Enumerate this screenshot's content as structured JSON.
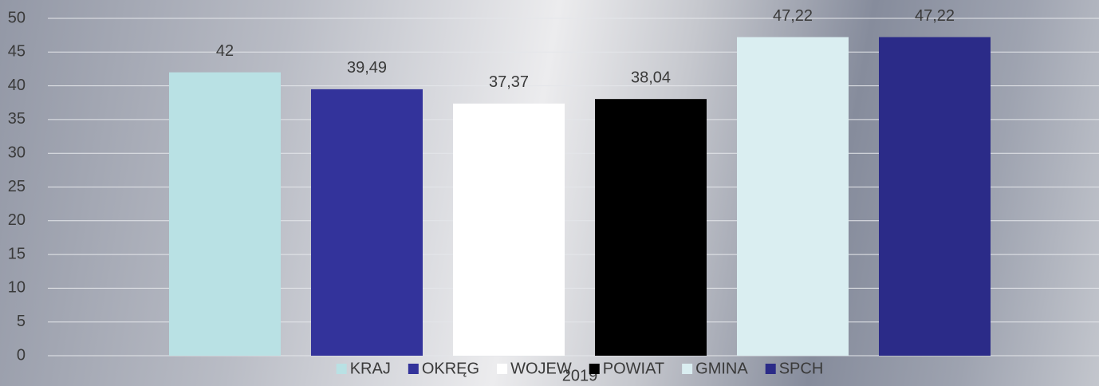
{
  "chart_data": {
    "type": "bar",
    "categories": [
      "2019"
    ],
    "series": [
      {
        "name": "KRAJ",
        "color": "#b9e1e4",
        "values": [
          42
        ],
        "value_labels": [
          "42"
        ]
      },
      {
        "name": "OKRĘG",
        "color": "#33339b",
        "values": [
          39.49
        ],
        "value_labels": [
          "39,49"
        ]
      },
      {
        "name": "WOJEW",
        "color": "#ffffff",
        "values": [
          37.37
        ],
        "value_labels": [
          "37,37"
        ]
      },
      {
        "name": "POWIAT",
        "color": "#000000",
        "values": [
          38.04
        ],
        "value_labels": [
          "38,04"
        ]
      },
      {
        "name": "GMINA",
        "color": "#daeef1",
        "values": [
          47.22
        ],
        "value_labels": [
          "47,22"
        ]
      },
      {
        "name": "SPCH",
        "color": "#2b2b88",
        "values": [
          47.22
        ],
        "value_labels": [
          "47,22"
        ]
      }
    ],
    "ylim": [
      0,
      50
    ],
    "yticks": [
      0,
      5,
      10,
      15,
      20,
      25,
      30,
      35,
      40,
      45,
      50
    ],
    "grid": true,
    "legend": "bottom"
  }
}
